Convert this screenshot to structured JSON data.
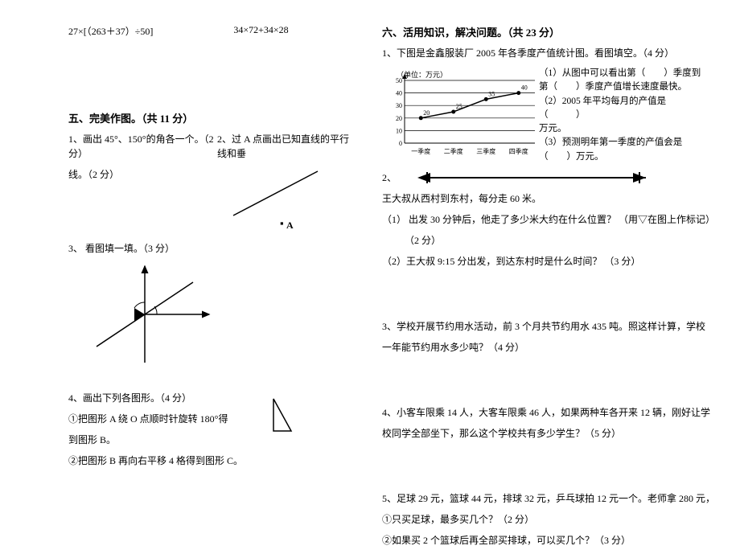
{
  "left": {
    "eq1": "27×[（263＋37）÷50]",
    "eq2": "34×72+34×28",
    "sec5_title": "五、完美作图。（共 11 分）",
    "q1": "1、画出 45°、150°的角各一个。（2 分）",
    "q2": "2、过 A 点画出已知直线的平行线和垂",
    "q1b": "线。（2 分）",
    "pointA": "A",
    "q3": "3、 看图填一填。（3 分）",
    "q4": "4、画出下列各图形。（4 分）",
    "q4a": "①把图形 A 绕 O 点顺时针旋转 180°得",
    "q4a2": "到图形 B。",
    "q4b": "②把图形 B 再向右平移 4 格得到图形 C。"
  },
  "right": {
    "sec6_title": "六、活用知识，解决问题。（共 23 分）",
    "q1": "1、下图是金鑫服装厂 2005 年各季度产值统计图。看图填空。（4 分）",
    "chart": {
      "unit": "（单位：万元）",
      "ylabels": [
        "50",
        "40",
        "30",
        "20",
        "10",
        "0"
      ],
      "xlabels": [
        "一季度",
        "二季度",
        "三季度",
        "四季度"
      ],
      "values": [
        20,
        25,
        35,
        40
      ],
      "value_labels": [
        "20",
        "25",
        "35",
        "40"
      ],
      "line_color": "#000000",
      "grid_color": "#000000",
      "bg": "#ffffff",
      "width": 180,
      "height": 95
    },
    "q1a": "（1）从图中可以看出第（　　）季度到",
    "q1b": "第（　　）季度产值增长速度最快。",
    "q1c": "（2）2005 年平均每月的产值是（　　　）",
    "q1d": "万元。",
    "q1e": "（3）预测明年第一季度的产值会是",
    "q1f": "（　　）万元。",
    "q2": "2、",
    "q2text": "王大叔从西村到东村，每分走 60 米。",
    "q2a": "（1） 出发 30 分钟后，他走了多少米大约在什么位置？ （用▽在图上作标记）",
    "q2a2": "（2 分）",
    "q2b": "（2）王大叔 9:15 分出发，到达东村时是什么时间？ （3 分）",
    "q3": "3、学校开展节约用水活动，前 3 个月共节约用水 435 吨。照这样计算，学校",
    "q3b": "一年能节约用水多少吨？（4 分）",
    "q4": "4、小客车限乘 14 人，大客车限乘 46 人，如果两种车各开来 12 辆，刚好让学",
    "q4b": "校同学全部坐下，那么这个学校共有多少学生？（5 分）",
    "q5": "5、足球 29 元，篮球 44 元，排球 32 元，乒乓球拍 12 元一个。老师拿 280 元，",
    "q5a": "①只买足球，最多买几个？（2 分）",
    "q5b": "②如果买 2 个篮球后再全部买排球，可以买几个？（3 分）"
  }
}
